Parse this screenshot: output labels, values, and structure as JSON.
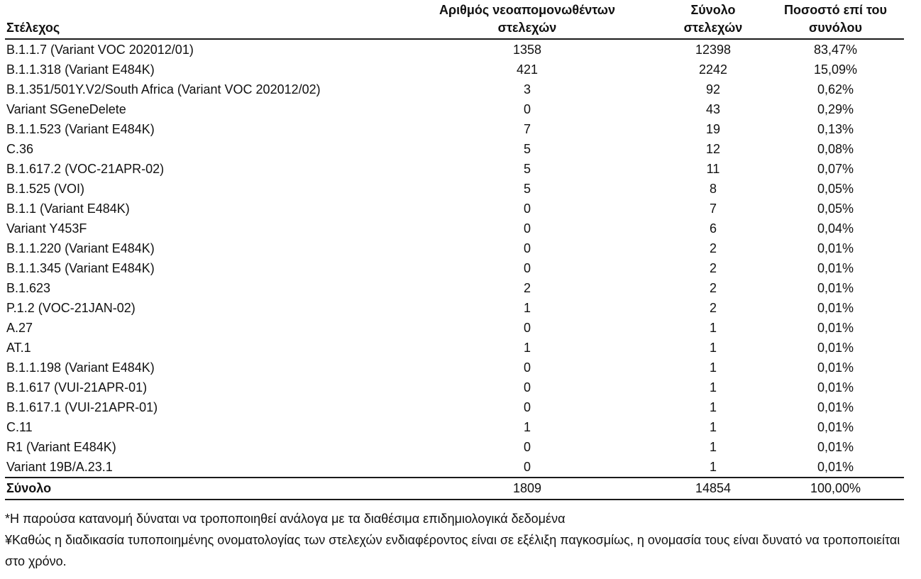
{
  "page": {
    "background_color": "#ffffff",
    "text_color": "#111111",
    "rule_color": "#1a1a1a"
  },
  "table": {
    "header": {
      "strain": "Στέλεχος",
      "col2_line1": "Αριθμός νεοαπομονωθέντων",
      "col2_line2": "στελεχών",
      "col3_line1": "Σύνολο",
      "col3_line2": "στελεχών",
      "col4_line1": "Ποσοστό επί του",
      "col4_line2": "συνόλου"
    },
    "rows": [
      {
        "strain": "B.1.1.7 (Variant VOC 202012/01)",
        "new_isolates": "1358",
        "total": "12398",
        "percent": "83,47%"
      },
      {
        "strain": "B.1.1.318 (Variant E484K)",
        "new_isolates": "421",
        "total": "2242",
        "percent": "15,09%"
      },
      {
        "strain": "B.1.351/501Y.V2/South Africa (Variant VOC 202012/02)",
        "new_isolates": "3",
        "total": "92",
        "percent": "0,62%"
      },
      {
        "strain": "Variant SGeneDelete",
        "new_isolates": "0",
        "total": "43",
        "percent": "0,29%"
      },
      {
        "strain": "B.1.1.523 (Variant E484K)",
        "new_isolates": "7",
        "total": "19",
        "percent": "0,13%"
      },
      {
        "strain": "C.36",
        "new_isolates": "5",
        "total": "12",
        "percent": "0,08%"
      },
      {
        "strain": "B.1.617.2 (VOC-21APR-02)",
        "new_isolates": "5",
        "total": "11",
        "percent": "0,07%"
      },
      {
        "strain": "B.1.525 (VOI)",
        "new_isolates": "5",
        "total": "8",
        "percent": "0,05%"
      },
      {
        "strain": "B.1.1 (Variant E484K)",
        "new_isolates": "0",
        "total": "7",
        "percent": "0,05%"
      },
      {
        "strain": "Variant Y453F",
        "new_isolates": "0",
        "total": "6",
        "percent": "0,04%"
      },
      {
        "strain": "B.1.1.220 (Variant E484K)",
        "new_isolates": "0",
        "total": "2",
        "percent": "0,01%"
      },
      {
        "strain": "B.1.1.345 (Variant E484K)",
        "new_isolates": "0",
        "total": "2",
        "percent": "0,01%"
      },
      {
        "strain": "B.1.623",
        "new_isolates": "2",
        "total": "2",
        "percent": "0,01%"
      },
      {
        "strain": "P.1.2 (VOC-21JAN-02)",
        "new_isolates": "1",
        "total": "2",
        "percent": "0,01%"
      },
      {
        "strain": "A.27",
        "new_isolates": "0",
        "total": "1",
        "percent": "0,01%"
      },
      {
        "strain": "AT.1",
        "new_isolates": "1",
        "total": "1",
        "percent": "0,01%"
      },
      {
        "strain": "B.1.1.198 (Variant E484K)",
        "new_isolates": "0",
        "total": "1",
        "percent": "0,01%"
      },
      {
        "strain": "B.1.617 (VUI-21APR-01)",
        "new_isolates": "0",
        "total": "1",
        "percent": "0,01%"
      },
      {
        "strain": "B.1.617.1 (VUI-21APR-01)",
        "new_isolates": "0",
        "total": "1",
        "percent": "0,01%"
      },
      {
        "strain": "C.11",
        "new_isolates": "1",
        "total": "1",
        "percent": "0,01%"
      },
      {
        "strain": "R1 (Variant E484K)",
        "new_isolates": "0",
        "total": "1",
        "percent": "0,01%"
      },
      {
        "strain": "Variant 19B/A.23.1",
        "new_isolates": "0",
        "total": "1",
        "percent": "0,01%"
      }
    ],
    "total_row": {
      "label": "Σύνολο",
      "new_isolates": "1809",
      "total": "14854",
      "percent": "100,00%"
    }
  },
  "footnotes": [
    "*Η παρούσα κατανομή δύναται να τροποποιηθεί ανάλογα με τα διαθέσιμα επιδημιολογικά δεδομένα",
    "¥Καθώς η διαδικασία τυποποιημένης ονοματολογίας των στελεχών ενδιαφέροντος είναι σε εξέλιξη παγκοσμίως, η ονομασία τους είναι δυνατό να τροποποιείται στο χρόνο."
  ]
}
